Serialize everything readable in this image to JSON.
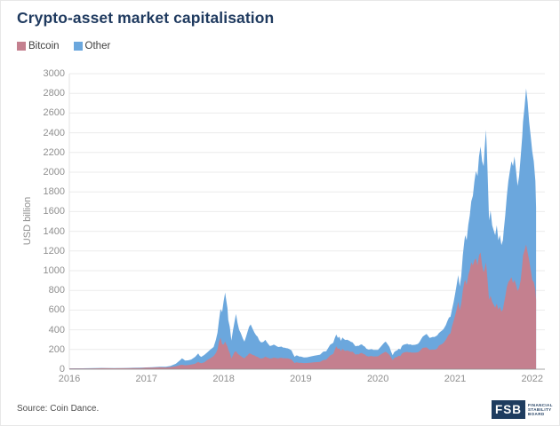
{
  "header": {
    "title": "Crypto-asset market capitalisation"
  },
  "legend": [
    {
      "label": "Bitcoin",
      "color": "#c4808f"
    },
    {
      "label": "Other",
      "color": "#6ba7dd"
    }
  ],
  "footer": {
    "source": "Source: Coin Dance.",
    "logo": {
      "text": "FSB",
      "lines": [
        "FINANCIAL",
        "STABILITY",
        "BOARD"
      ],
      "color": "#1e3c5f"
    }
  },
  "colors": {
    "title": "#1f3a5f",
    "bitcoin_area": "#c4808f",
    "other_area": "#6ba7dd",
    "gridline": "#ebebeb",
    "axis": "#8a8a8a",
    "tick_text": "#8f8f8f"
  },
  "chart_data": {
    "type": "area",
    "stacked": true,
    "title": "Crypto-asset market capitalisation",
    "xlabel": "",
    "ylabel": "USD billion",
    "ylim": [
      0,
      3000
    ],
    "yticks": [
      0,
      200,
      400,
      600,
      800,
      1000,
      1200,
      1400,
      1600,
      1800,
      2000,
      2200,
      2400,
      2600,
      2800,
      3000
    ],
    "xticks": [
      2016,
      2017,
      2018,
      2019,
      2020,
      2021,
      2022
    ],
    "grid": "horizontal",
    "legend_position": "top-left",
    "series_names": [
      "Bitcoin",
      "Other"
    ],
    "points_format": [
      "year_fraction",
      "bitcoin_usd_bn",
      "other_usd_bn"
    ],
    "points": [
      [
        2016.0,
        6,
        2
      ],
      [
        2016.08,
        7,
        2
      ],
      [
        2016.17,
        7,
        2
      ],
      [
        2016.25,
        7,
        3
      ],
      [
        2016.33,
        8,
        3
      ],
      [
        2016.42,
        10,
        3
      ],
      [
        2016.5,
        10,
        2
      ],
      [
        2016.58,
        9,
        3
      ],
      [
        2016.67,
        10,
        2
      ],
      [
        2016.75,
        10,
        3
      ],
      [
        2016.83,
        11,
        3
      ],
      [
        2016.92,
        12,
        3
      ],
      [
        2017.0,
        15,
        3
      ],
      [
        2017.08,
        16,
        4
      ],
      [
        2017.17,
        19,
        5
      ],
      [
        2017.25,
        17,
        7
      ],
      [
        2017.31,
        22,
        10
      ],
      [
        2017.38,
        29,
        26
      ],
      [
        2017.44,
        42,
        53
      ],
      [
        2017.46,
        45,
        65
      ],
      [
        2017.48,
        42,
        58
      ],
      [
        2017.5,
        40,
        48
      ],
      [
        2017.54,
        43,
        47
      ],
      [
        2017.58,
        48,
        50
      ],
      [
        2017.63,
        55,
        70
      ],
      [
        2017.67,
        75,
        85
      ],
      [
        2017.69,
        65,
        70
      ],
      [
        2017.71,
        60,
        65
      ],
      [
        2017.75,
        70,
        75
      ],
      [
        2017.79,
        95,
        77
      ],
      [
        2017.83,
        112,
        88
      ],
      [
        2017.87,
        132,
        93
      ],
      [
        2017.9,
        165,
        135
      ],
      [
        2017.92,
        200,
        170
      ],
      [
        2017.94,
        280,
        220
      ],
      [
        2017.96,
        320,
        290
      ],
      [
        2017.98,
        255,
        325
      ],
      [
        2018.0,
        250,
        440
      ],
      [
        2018.02,
        282,
        496
      ],
      [
        2018.03,
        260,
        460
      ],
      [
        2018.05,
        230,
        390
      ],
      [
        2018.06,
        200,
        300
      ],
      [
        2018.08,
        165,
        265
      ],
      [
        2018.1,
        110,
        180
      ],
      [
        2018.12,
        140,
        250
      ],
      [
        2018.14,
        175,
        305
      ],
      [
        2018.16,
        182,
        378
      ],
      [
        2018.18,
        160,
        310
      ],
      [
        2018.2,
        145,
        255
      ],
      [
        2018.22,
        135,
        235
      ],
      [
        2018.25,
        118,
        192
      ],
      [
        2018.27,
        110,
        170
      ],
      [
        2018.29,
        128,
        202
      ],
      [
        2018.31,
        140,
        240
      ],
      [
        2018.33,
        160,
        270
      ],
      [
        2018.35,
        158,
        297
      ],
      [
        2018.37,
        148,
        272
      ],
      [
        2018.4,
        140,
        230
      ],
      [
        2018.42,
        130,
        215
      ],
      [
        2018.44,
        125,
        205
      ],
      [
        2018.46,
        115,
        180
      ],
      [
        2018.48,
        108,
        167
      ],
      [
        2018.5,
        110,
        162
      ],
      [
        2018.52,
        115,
        165
      ],
      [
        2018.54,
        128,
        170
      ],
      [
        2018.56,
        120,
        155
      ],
      [
        2018.58,
        115,
        140
      ],
      [
        2018.6,
        108,
        127
      ],
      [
        2018.63,
        112,
        130
      ],
      [
        2018.65,
        118,
        132
      ],
      [
        2018.67,
        115,
        127
      ],
      [
        2018.69,
        112,
        120
      ],
      [
        2018.71,
        110,
        115
      ],
      [
        2018.73,
        114,
        114
      ],
      [
        2018.75,
        116,
        114
      ],
      [
        2018.77,
        112,
        108
      ],
      [
        2018.79,
        113,
        105
      ],
      [
        2018.81,
        111,
        103
      ],
      [
        2018.83,
        110,
        102
      ],
      [
        2018.85,
        105,
        100
      ],
      [
        2018.88,
        98,
        92
      ],
      [
        2018.9,
        78,
        77
      ],
      [
        2018.92,
        62,
        63
      ],
      [
        2018.94,
        70,
        70
      ],
      [
        2018.96,
        68,
        70
      ],
      [
        2018.98,
        64,
        64
      ],
      [
        2019.0,
        66,
        62
      ],
      [
        2019.04,
        62,
        58
      ],
      [
        2019.08,
        63,
        58
      ],
      [
        2019.13,
        67,
        63
      ],
      [
        2019.17,
        70,
        66
      ],
      [
        2019.21,
        72,
        70
      ],
      [
        2019.25,
        74,
        74
      ],
      [
        2019.29,
        93,
        85
      ],
      [
        2019.33,
        97,
        85
      ],
      [
        2019.38,
        140,
        108
      ],
      [
        2019.4,
        148,
        110
      ],
      [
        2019.42,
        155,
        113
      ],
      [
        2019.44,
        195,
        120
      ],
      [
        2019.46,
        232,
        120
      ],
      [
        2019.48,
        205,
        113
      ],
      [
        2019.5,
        212,
        118
      ],
      [
        2019.52,
        182,
        106
      ],
      [
        2019.54,
        207,
        115
      ],
      [
        2019.56,
        192,
        113
      ],
      [
        2019.58,
        185,
        111
      ],
      [
        2019.6,
        190,
        110
      ],
      [
        2019.63,
        182,
        106
      ],
      [
        2019.65,
        176,
        102
      ],
      [
        2019.67,
        178,
        94
      ],
      [
        2019.71,
        148,
        84
      ],
      [
        2019.73,
        152,
        86
      ],
      [
        2019.75,
        150,
        86
      ],
      [
        2019.77,
        162,
        86
      ],
      [
        2019.79,
        166,
        86
      ],
      [
        2019.81,
        155,
        83
      ],
      [
        2019.83,
        150,
        80
      ],
      [
        2019.85,
        135,
        73
      ],
      [
        2019.88,
        128,
        70
      ],
      [
        2019.9,
        132,
        70
      ],
      [
        2019.92,
        134,
        70
      ],
      [
        2019.94,
        128,
        68
      ],
      [
        2019.96,
        130,
        66
      ],
      [
        2020.0,
        131,
        65
      ],
      [
        2020.04,
        152,
        80
      ],
      [
        2020.08,
        170,
        98
      ],
      [
        2020.1,
        178,
        102
      ],
      [
        2020.13,
        160,
        88
      ],
      [
        2020.15,
        145,
        80
      ],
      [
        2020.17,
        118,
        60
      ],
      [
        2020.19,
        92,
        50
      ],
      [
        2020.21,
        112,
        60
      ],
      [
        2020.23,
        122,
        64
      ],
      [
        2020.25,
        125,
        67
      ],
      [
        2020.27,
        138,
        70
      ],
      [
        2020.29,
        132,
        68
      ],
      [
        2020.31,
        158,
        77
      ],
      [
        2020.33,
        168,
        80
      ],
      [
        2020.35,
        172,
        80
      ],
      [
        2020.38,
        176,
        82
      ],
      [
        2020.4,
        170,
        80
      ],
      [
        2020.42,
        172,
        80
      ],
      [
        2020.44,
        168,
        78
      ],
      [
        2020.46,
        169,
        78
      ],
      [
        2020.48,
        168,
        80
      ],
      [
        2020.5,
        170,
        82
      ],
      [
        2020.52,
        172,
        86
      ],
      [
        2020.54,
        184,
        94
      ],
      [
        2020.56,
        200,
        105
      ],
      [
        2020.58,
        216,
        114
      ],
      [
        2020.6,
        218,
        124
      ],
      [
        2020.63,
        222,
        136
      ],
      [
        2020.65,
        210,
        128
      ],
      [
        2020.67,
        196,
        122
      ],
      [
        2020.69,
        198,
        124
      ],
      [
        2020.71,
        200,
        128
      ],
      [
        2020.73,
        198,
        128
      ],
      [
        2020.75,
        202,
        132
      ],
      [
        2020.77,
        212,
        133
      ],
      [
        2020.79,
        240,
        128
      ],
      [
        2020.81,
        248,
        132
      ],
      [
        2020.83,
        255,
        137
      ],
      [
        2020.85,
        268,
        140
      ],
      [
        2020.88,
        298,
        150
      ],
      [
        2020.9,
        328,
        160
      ],
      [
        2020.92,
        355,
        170
      ],
      [
        2020.94,
        362,
        170
      ],
      [
        2020.96,
        432,
        173
      ],
      [
        2020.98,
        490,
        190
      ],
      [
        2021.0,
        545,
        220
      ],
      [
        2021.02,
        605,
        250
      ],
      [
        2021.04,
        685,
        270
      ],
      [
        2021.06,
        600,
        240
      ],
      [
        2021.08,
        665,
        280
      ],
      [
        2021.1,
        800,
        360
      ],
      [
        2021.12,
        885,
        415
      ],
      [
        2021.13,
        905,
        455
      ],
      [
        2021.15,
        855,
        455
      ],
      [
        2021.17,
        955,
        510
      ],
      [
        2021.19,
        1005,
        555
      ],
      [
        2021.21,
        1085,
        620
      ],
      [
        2021.23,
        1055,
        705
      ],
      [
        2021.25,
        1105,
        800
      ],
      [
        2021.27,
        1125,
        885
      ],
      [
        2021.29,
        1055,
        905
      ],
      [
        2021.31,
        1155,
        1005
      ],
      [
        2021.33,
        1185,
        1075
      ],
      [
        2021.35,
        1055,
        1055
      ],
      [
        2021.37,
        985,
        1075
      ],
      [
        2021.38,
        1005,
        1205
      ],
      [
        2021.4,
        1085,
        1345
      ],
      [
        2021.41,
        1000,
        1250
      ],
      [
        2021.42,
        905,
        1105
      ],
      [
        2021.44,
        705,
        805
      ],
      [
        2021.46,
        745,
        865
      ],
      [
        2021.48,
        685,
        775
      ],
      [
        2021.5,
        655,
        755
      ],
      [
        2021.52,
        625,
        735
      ],
      [
        2021.54,
        665,
        795
      ],
      [
        2021.56,
        605,
        705
      ],
      [
        2021.58,
        635,
        725
      ],
      [
        2021.6,
        585,
        675
      ],
      [
        2021.62,
        605,
        705
      ],
      [
        2021.63,
        655,
        755
      ],
      [
        2021.65,
        735,
        825
      ],
      [
        2021.67,
        835,
        925
      ],
      [
        2021.69,
        885,
        1025
      ],
      [
        2021.71,
        905,
        1105
      ],
      [
        2021.73,
        935,
        1175
      ],
      [
        2021.75,
        875,
        1185
      ],
      [
        2021.77,
        905,
        1255
      ],
      [
        2021.79,
        855,
        1155
      ],
      [
        2021.81,
        795,
        1065
      ],
      [
        2021.83,
        825,
        1135
      ],
      [
        2021.85,
        905,
        1255
      ],
      [
        2021.87,
        1055,
        1305
      ],
      [
        2021.88,
        1155,
        1355
      ],
      [
        2021.9,
        1205,
        1455
      ],
      [
        2021.92,
        1265,
        1585
      ],
      [
        2021.94,
        1185,
        1525
      ],
      [
        2021.96,
        1105,
        1405
      ],
      [
        2021.98,
        1005,
        1355
      ],
      [
        2022.0,
        905,
        1305
      ],
      [
        2022.02,
        885,
        1225
      ],
      [
        2022.04,
        805,
        1105
      ],
      [
        2022.05,
        705,
        935
      ]
    ]
  }
}
